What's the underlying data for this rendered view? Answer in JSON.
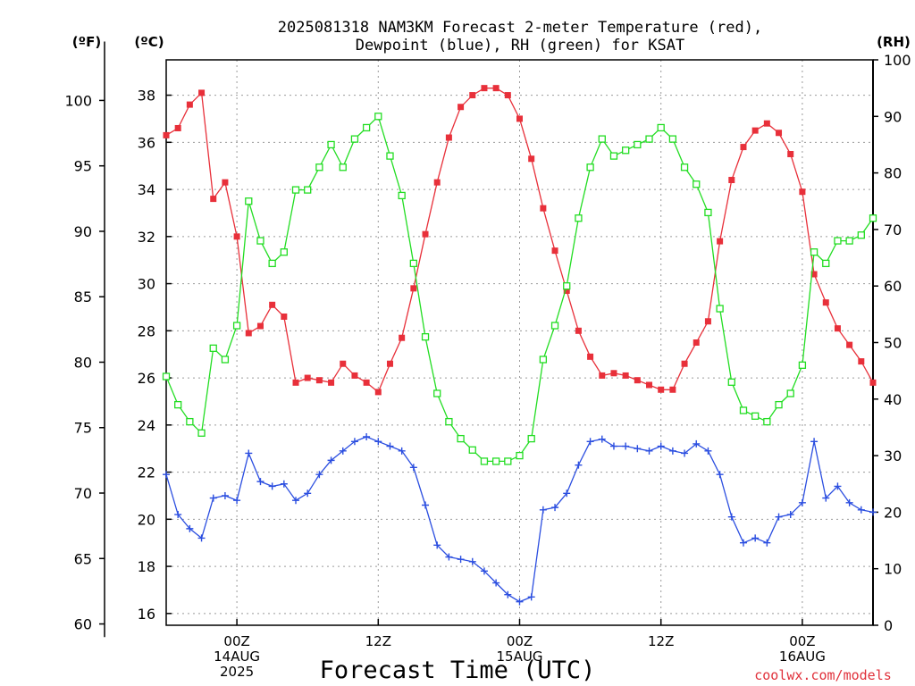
{
  "chart_data": {
    "type": "line",
    "title_lines": [
      "2025081318 NAM3KM Forecast 2-meter Temperature (red),",
      "Dewpoint (blue), RH (green) for KSAT"
    ],
    "xlabel": "Forecast Time (UTC)",
    "credit": "coolwx.com/models",
    "units": {
      "fahrenheit": "(ºF)",
      "celsius": "(ºC)",
      "rh": "(RH)"
    },
    "x_range_hours": [
      0,
      60
    ],
    "celsius_ylim": [
      15.5,
      39.5
    ],
    "fahrenheit_ticks": [
      "60",
      "65",
      "70",
      "75",
      "80",
      "85",
      "90",
      "95",
      "100"
    ],
    "celsius_ticks": [
      "16",
      "18",
      "20",
      "22",
      "24",
      "26",
      "28",
      "30",
      "32",
      "34",
      "36",
      "38"
    ],
    "rh_ticks": [
      "0",
      "10",
      "20",
      "30",
      "40",
      "50",
      "60",
      "70",
      "80",
      "90",
      "100"
    ],
    "x_ticks": [
      {
        "hour": 6,
        "lines": [
          "00Z",
          "14AUG",
          "2025"
        ]
      },
      {
        "hour": 18,
        "lines": [
          "12Z"
        ]
      },
      {
        "hour": 30,
        "lines": [
          "00Z",
          "15AUG"
        ]
      },
      {
        "hour": 42,
        "lines": [
          "12Z"
        ]
      },
      {
        "hour": 54,
        "lines": [
          "00Z",
          "16AUG"
        ]
      }
    ],
    "x_hours": [
      0,
      1,
      2,
      3,
      4,
      5,
      6,
      7,
      8,
      9,
      10,
      11,
      12,
      13,
      14,
      15,
      16,
      17,
      18,
      19,
      20,
      21,
      22,
      23,
      24,
      25,
      26,
      27,
      28,
      29,
      30,
      31,
      32,
      33,
      34,
      35,
      36,
      37,
      38,
      39,
      40,
      41,
      42,
      43,
      44,
      45,
      46,
      47,
      48,
      49,
      50,
      51,
      52,
      53,
      54,
      55,
      56,
      57,
      58,
      59,
      60
    ],
    "series": [
      {
        "color": "#e8303a",
        "marker": "filled-square",
        "axis": "celsius",
        "values": [
          36.3,
          36.6,
          37.6,
          38.1,
          33.6,
          34.3,
          32.0,
          27.9,
          28.2,
          29.1,
          28.6,
          25.8,
          26.0,
          25.9,
          25.8,
          26.6,
          26.1,
          25.8,
          25.4,
          26.6,
          27.7,
          29.8,
          32.1,
          34.3,
          36.2,
          37.5,
          38.0,
          38.3,
          38.3,
          38.0,
          37.0,
          35.3,
          33.2,
          31.4,
          29.7,
          28.0,
          26.9,
          26.1,
          26.2,
          26.1,
          25.9,
          25.7,
          25.5,
          25.5,
          26.6,
          27.5,
          28.4,
          31.8,
          34.4,
          35.8,
          36.5,
          36.8,
          36.4,
          35.5,
          33.9,
          30.4,
          29.2,
          28.1,
          27.4,
          26.7,
          25.8
        ]
      },
      {
        "color": "#2b4ee0",
        "marker": "plus",
        "axis": "celsius",
        "values": [
          21.9,
          20.2,
          19.6,
          19.2,
          20.9,
          21.0,
          20.8,
          22.8,
          21.6,
          21.4,
          21.5,
          20.8,
          21.1,
          21.9,
          22.5,
          22.9,
          23.3,
          23.5,
          23.3,
          23.1,
          22.9,
          22.2,
          20.6,
          18.9,
          18.4,
          18.3,
          18.2,
          17.8,
          17.3,
          16.8,
          16.5,
          16.7,
          20.4,
          20.5,
          21.1,
          22.3,
          23.3,
          23.4,
          23.1,
          23.1,
          23.0,
          22.9,
          23.1,
          22.9,
          22.8,
          23.2,
          22.9,
          21.9,
          20.1,
          19.0,
          19.2,
          19.0,
          20.1,
          20.2,
          20.7,
          23.3,
          20.9,
          21.4,
          20.7,
          20.4,
          20.3
        ]
      },
      {
        "color": "#22dd22",
        "marker": "open-square",
        "axis": "rh",
        "values": [
          44,
          39,
          36,
          34,
          49,
          47,
          53,
          75,
          68,
          64,
          66,
          77,
          77,
          81,
          85,
          81,
          86,
          88,
          90,
          83,
          76,
          64,
          51,
          41,
          36,
          33,
          31,
          29,
          29,
          29,
          30,
          33,
          47,
          53,
          60,
          72,
          81,
          86,
          83,
          84,
          85,
          86,
          88,
          86,
          81,
          78,
          73,
          56,
          43,
          38,
          37,
          36,
          39,
          41,
          46,
          66,
          64,
          68,
          68,
          69,
          72
        ]
      }
    ]
  }
}
